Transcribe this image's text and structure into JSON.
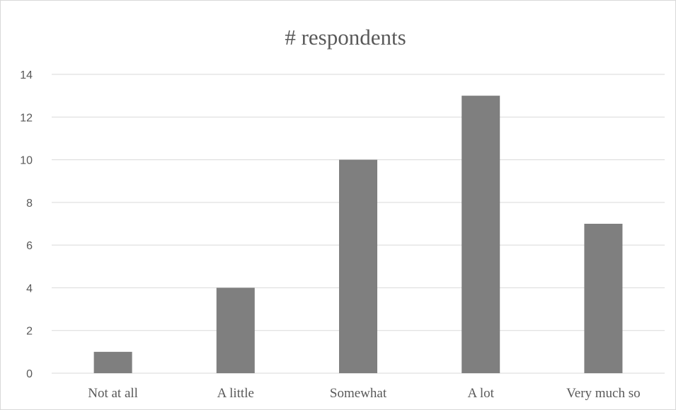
{
  "chart_data": {
    "type": "bar",
    "title": "# respondents",
    "xlabel": "",
    "ylabel": "",
    "categories": [
      "Not at all",
      "A little",
      "Somewhat",
      "A lot",
      "Very much so"
    ],
    "values": [
      1,
      4,
      10,
      13,
      7
    ],
    "ylim": [
      0,
      14
    ],
    "yticks": [
      0,
      2,
      4,
      6,
      8,
      10,
      12,
      14
    ],
    "grid": true,
    "legend": "none",
    "bar_color": "#7f7f7f"
  }
}
